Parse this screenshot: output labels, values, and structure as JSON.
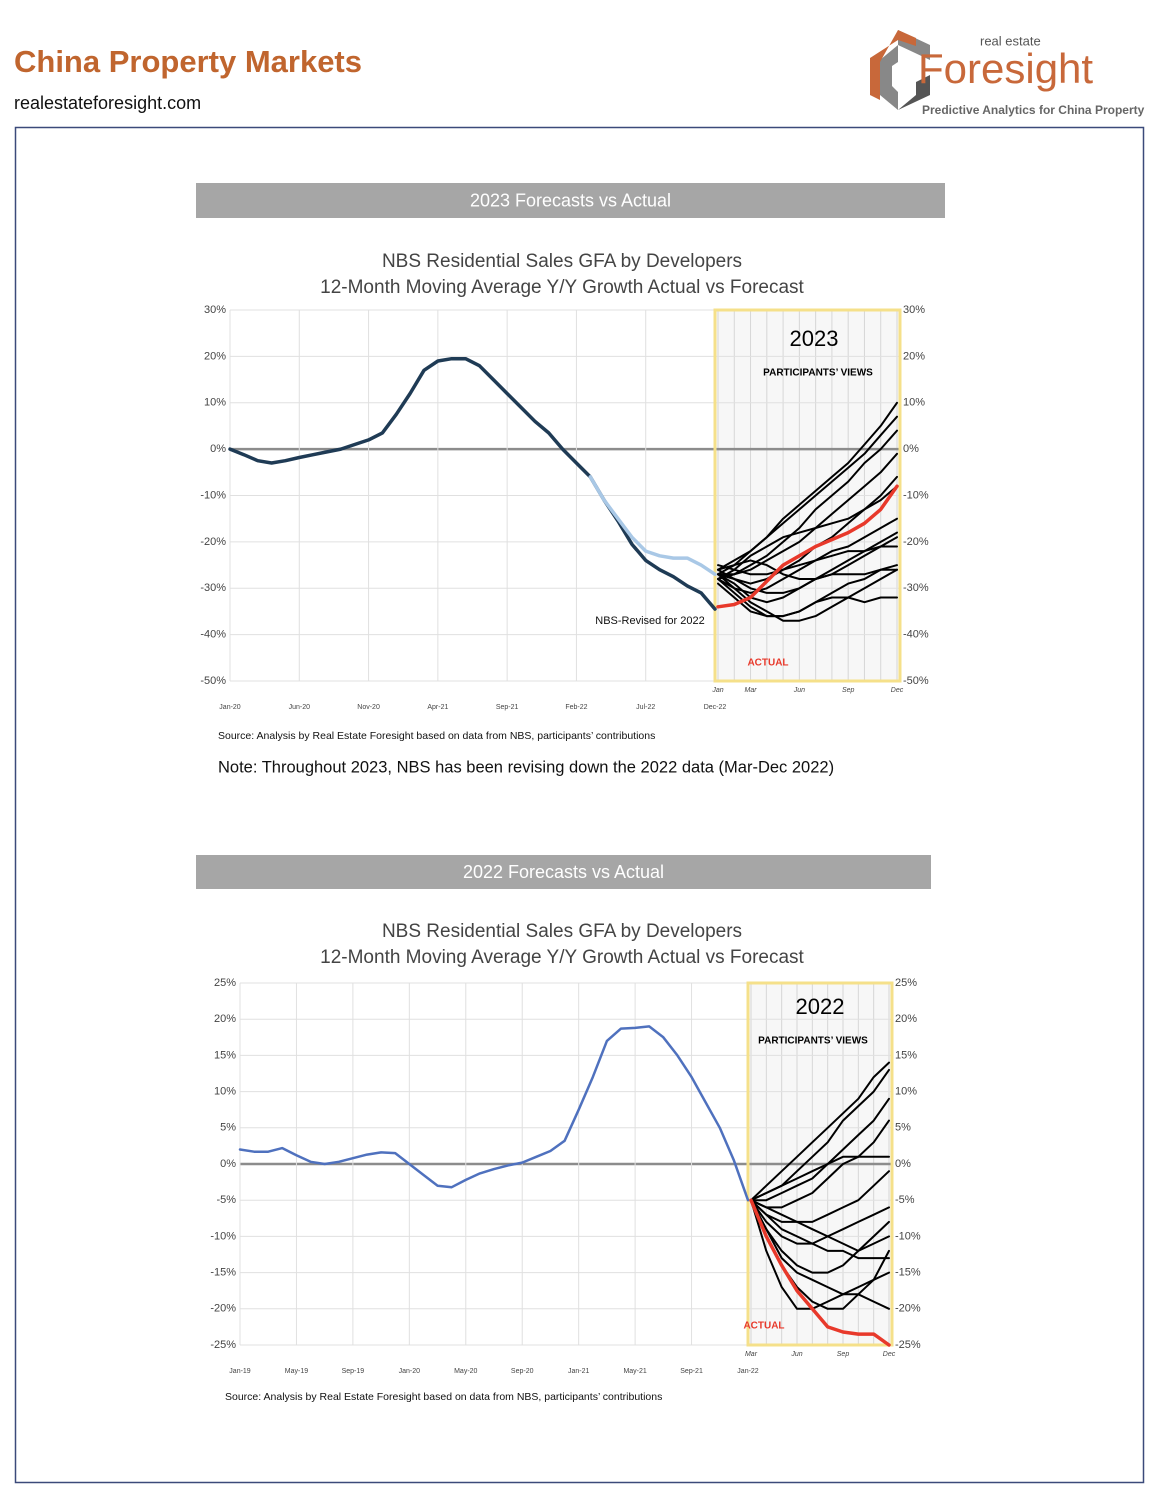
{
  "header": {
    "title": "China Property Markets",
    "url": "realestateforesight.com",
    "logo_small": "real estate",
    "logo_name": "Foresight",
    "logo_tagline": "Predictive Analytics for China Property"
  },
  "chart_data": [
    {
      "type": "line",
      "banner": "2023 Forecasts vs Actual",
      "title": "NBS Residential Sales GFA by Developers",
      "subtitle": "12-Month Moving Average Y/Y Growth Actual vs Forecast",
      "categories": [
        "Jan-20",
        null,
        null,
        null,
        null,
        "Jun-20",
        null,
        null,
        null,
        null,
        "Nov-20",
        null,
        null,
        null,
        null,
        "Apr-21",
        null,
        null,
        null,
        null,
        "Sep-21",
        null,
        null,
        null,
        null,
        "Feb-22",
        null,
        null,
        null,
        null,
        "Jul-22",
        null,
        null,
        null,
        null,
        "Dec-22"
      ],
      "series": [
        {
          "name": "NBS-Revised for 2022",
          "color": "#1f3b55",
          "values": [
            0,
            -1.2,
            -2.5,
            -3,
            -2.5,
            -1.8,
            -1.2,
            -0.6,
            0,
            1,
            2,
            3.5,
            7.5,
            12,
            17,
            19,
            19.5,
            19.5,
            18,
            15,
            12,
            9,
            6,
            3.5,
            0,
            -3,
            -6,
            -11,
            -15.5,
            -20.5,
            -24,
            -26,
            -27.5,
            -29.5,
            -31,
            -34.5
          ]
        },
        {
          "color": "#a9c8e6",
          "values": [
            null,
            null,
            null,
            null,
            null,
            null,
            null,
            null,
            null,
            null,
            null,
            null,
            null,
            null,
            null,
            null,
            null,
            null,
            null,
            null,
            null,
            null,
            null,
            null,
            null,
            null,
            -6,
            -11,
            -15,
            -19,
            -22,
            -23,
            -23.5,
            -23.5,
            -25,
            -27
          ]
        }
      ],
      "ylim": [
        -50,
        30
      ],
      "yticks": [
        {
          "value": -50,
          "label": "-50%"
        },
        {
          "value": -40,
          "label": "-40%"
        },
        {
          "value": -30,
          "label": "-30%"
        },
        {
          "value": -20,
          "label": "-20%"
        },
        {
          "value": -10,
          "label": "-10%"
        },
        {
          "value": 0,
          "label": "0%"
        },
        {
          "value": 10,
          "label": "10%"
        },
        {
          "value": 20,
          "label": "20%"
        },
        {
          "value": 30,
          "label": "30%"
        }
      ],
      "grid": true,
      "forecast": {
        "title": "2023",
        "subtitle": "PARTICIPANTS’ VIEWS",
        "categories": [
          "Jan",
          null,
          "Mar",
          null,
          null,
          "Jun",
          null,
          null,
          "Sep",
          null,
          null,
          "Dec"
        ],
        "series": [
          {
            "color": "#000000",
            "values": [
              -27,
              -25,
              -22,
              -19,
              -15,
              -12,
              -9,
              -6,
              -3,
              1,
              5,
              10
            ]
          },
          {
            "color": "#000000",
            "values": [
              -26,
              -24,
              -22,
              -19,
              -16,
              -13,
              -10,
              -7,
              -4,
              -1,
              3,
              7
            ]
          },
          {
            "color": "#000000",
            "values": [
              -28,
              -27,
              -25,
              -23,
              -20,
              -17,
              -13,
              -10,
              -7,
              -3,
              0,
              4
            ]
          },
          {
            "color": "#000000",
            "values": [
              -27,
              -27,
              -26,
              -24,
              -22,
              -20,
              -17,
              -14,
              -11,
              -8,
              -5,
              -1
            ]
          },
          {
            "color": "#000000",
            "values": [
              -26,
              -28,
              -29,
              -28,
              -26,
              -24,
              -21,
              -19,
              -16,
              -13,
              -10,
              -6
            ]
          },
          {
            "color": "#000000",
            "values": [
              -28,
              -30,
              -31,
              -30,
              -28,
              -26,
              -24,
              -22,
              -21,
              -19,
              -17,
              -15
            ]
          },
          {
            "color": "#000000",
            "values": [
              -27,
              -29,
              -32,
              -33,
              -32,
              -30,
              -28,
              -26,
              -24,
              -22,
              -20,
              -18
            ]
          },
          {
            "color": "#000000",
            "values": [
              -25,
              -26,
              -27,
              -27,
              -26,
              -25,
              -24,
              -23,
              -22,
              -22,
              -21,
              -21
            ]
          },
          {
            "color": "#000000",
            "values": [
              -28,
              -31,
              -34,
              -36,
              -36,
              -35,
              -33,
              -31,
              -29,
              -28,
              -26,
              -25
            ]
          },
          {
            "color": "#000000",
            "values": [
              -27,
              -30,
              -33,
              -35,
              -37,
              -37,
              -36,
              -34,
              -32,
              -30,
              -28,
              -26
            ]
          },
          {
            "color": "#000000",
            "values": [
              -29,
              -32,
              -35,
              -36,
              -36,
              -35,
              -33,
              -32,
              -32,
              -33,
              -32,
              -32
            ]
          },
          {
            "color": "#000000",
            "values": [
              -26,
              -25,
              -24,
              -25,
              -27,
              -28,
              -28,
              -27,
              -27,
              -27,
              -26,
              -26
            ]
          },
          {
            "color": "#000000",
            "values": [
              -27,
              -28,
              -30,
              -31,
              -31,
              -30,
              -28,
              -27,
              -25,
              -23,
              -21,
              -19
            ]
          },
          {
            "color": "#000000",
            "values": [
              -28,
              -26,
              -23,
              -21,
              -19,
              -18,
              -17,
              -16,
              -15,
              -13,
              -11,
              -8
            ]
          },
          {
            "name": "ACTUAL",
            "color": "#e8392b",
            "values": [
              -34,
              -33.5,
              -32,
              -28.5,
              -25,
              -23,
              -21,
              -19.5,
              -18,
              -16,
              -13,
              -8
            ]
          }
        ]
      },
      "source": "Source: Analysis by Real Estate Foresight based on data from NBS, participants’ contributions",
      "note": "Note: Throughout 2023, NBS has been revising down the 2022 data (Mar-Dec 2022)"
    },
    {
      "type": "line",
      "banner": "2022 Forecasts vs Actual",
      "title": "NBS Residential Sales GFA by Developers",
      "subtitle": "12-Month Moving Average Y/Y Growth Actual vs Forecast",
      "categories": [
        "Jan-19",
        null,
        null,
        null,
        "May-19",
        null,
        null,
        null,
        "Sep-19",
        null,
        null,
        null,
        "Jan-20",
        null,
        null,
        null,
        "May-20",
        null,
        null,
        null,
        "Sep-20",
        null,
        null,
        null,
        "Jan-21",
        null,
        null,
        null,
        "May-21",
        null,
        null,
        null,
        "Sep-21",
        null,
        null,
        null,
        "Jan-22"
      ],
      "series": [
        {
          "color": "#4f71be",
          "values": [
            2,
            1.7,
            1.7,
            2.2,
            1.2,
            0.3,
            0,
            0.3,
            0.8,
            1.3,
            1.6,
            1.5,
            0,
            -1.5,
            -3,
            -3.2,
            -2.2,
            -1.3,
            -0.7,
            -0.2,
            0.2,
            1,
            1.8,
            3.2,
            7.5,
            12,
            17,
            18.7,
            18.8,
            19,
            17.5,
            15,
            12,
            8.5,
            5,
            0.5,
            -5
          ]
        }
      ],
      "ylim": [
        -25,
        25
      ],
      "yticks": [
        {
          "value": -25,
          "label": "-25%"
        },
        {
          "value": -20,
          "label": "-20%"
        },
        {
          "value": -15,
          "label": "-15%"
        },
        {
          "value": -10,
          "label": "-10%"
        },
        {
          "value": -5,
          "label": "-5%"
        },
        {
          "value": 0,
          "label": "0%"
        },
        {
          "value": 5,
          "label": "5%"
        },
        {
          "value": 10,
          "label": "10%"
        },
        {
          "value": 15,
          "label": "15%"
        },
        {
          "value": 20,
          "label": "20%"
        },
        {
          "value": 25,
          "label": "25%"
        }
      ],
      "grid": true,
      "forecast": {
        "title": "2022",
        "subtitle": "PARTICIPANTS’ VIEWS",
        "categories": [
          "Mar",
          null,
          null,
          "Jun",
          null,
          null,
          "Sep",
          null,
          null,
          "Dec"
        ],
        "series": [
          {
            "color": "#000000",
            "values": [
              -5,
              -3,
              -1,
              1,
              3,
              5,
              7,
              9,
              12,
              14
            ]
          },
          {
            "color": "#000000",
            "values": [
              -5,
              -4,
              -3,
              -1,
              1,
              3,
              6,
              8,
              10,
              13
            ]
          },
          {
            "color": "#000000",
            "values": [
              -5,
              -5,
              -4,
              -3,
              -2,
              0,
              2,
              4,
              6,
              9
            ]
          },
          {
            "color": "#000000",
            "values": [
              -5,
              -6,
              -6,
              -5,
              -4,
              -2,
              0,
              1,
              3,
              6
            ]
          },
          {
            "color": "#000000",
            "values": [
              -5,
              -4,
              -3,
              -2,
              -1,
              0,
              1,
              1,
              1,
              1
            ]
          },
          {
            "color": "#000000",
            "values": [
              -5,
              -7,
              -8,
              -8,
              -8,
              -7,
              -6,
              -5,
              -3,
              -1
            ]
          },
          {
            "color": "#000000",
            "values": [
              -5,
              -8,
              -10,
              -11,
              -11,
              -10,
              -9,
              -8,
              -7,
              -6
            ]
          },
          {
            "color": "#000000",
            "values": [
              -5,
              -9,
              -12,
              -14,
              -15,
              -15,
              -14,
              -12,
              -10,
              -8
            ]
          },
          {
            "color": "#000000",
            "values": [
              -5,
              -10,
              -14,
              -17,
              -19,
              -20,
              -20,
              -18,
              -16,
              -12
            ]
          },
          {
            "color": "#000000",
            "values": [
              -5,
              -7,
              -9,
              -10,
              -11,
              -12,
              -12,
              -13,
              -13,
              -13
            ]
          },
          {
            "color": "#000000",
            "values": [
              -5,
              -6,
              -7,
              -8,
              -9,
              -10,
              -11,
              -12,
              -11,
              -10
            ]
          },
          {
            "color": "#000000",
            "values": [
              -5,
              -9,
              -13,
              -15,
              -16,
              -17,
              -18,
              -18,
              -19,
              -20
            ]
          },
          {
            "color": "#000000",
            "values": [
              -5,
              -12,
              -17,
              -20,
              -20,
              -19,
              -18,
              -17,
              -16,
              -15
            ]
          },
          {
            "name": "ACTUAL",
            "color": "#e8392b",
            "values": [
              -5,
              -10,
              -14,
              -17.5,
              -20,
              -22.5,
              -23.2,
              -23.5,
              -23.5,
              -25
            ]
          }
        ]
      },
      "source": "Source: Analysis by Real Estate Foresight based on data from NBS, participants’ contributions"
    }
  ]
}
